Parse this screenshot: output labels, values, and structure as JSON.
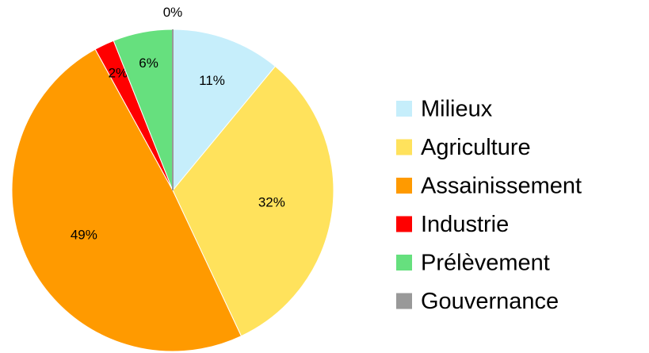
{
  "chart_data": {
    "type": "pie",
    "categories": [
      "Milieux",
      "Agriculture",
      "Assainissement",
      "Industrie",
      "Prélèvement",
      "Gouvernance"
    ],
    "values": [
      11,
      32,
      49,
      2,
      6,
      0
    ],
    "value_labels": [
      "11%",
      "32%",
      "49%",
      "2%",
      "6%",
      "0%"
    ],
    "colors": [
      "#c6eefb",
      "#ffe25c",
      "#ff9a00",
      "#ff0000",
      "#66e07e",
      "#999999"
    ],
    "legend": "right"
  }
}
